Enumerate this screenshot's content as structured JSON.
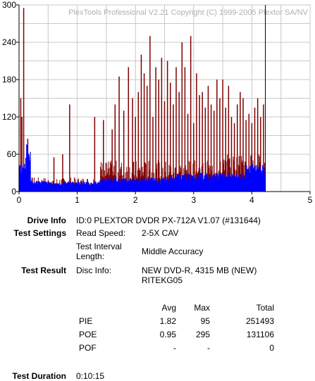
{
  "chart_data": {
    "type": "bar",
    "title": "PlexTools Professional V2.21 Copyright (C) 1999-2005 Plextor SA/NV",
    "xlim": [
      0,
      5
    ],
    "ylim": [
      0,
      300
    ],
    "x_ticks": [
      "0",
      "1",
      "2",
      "3",
      "4",
      "5"
    ],
    "y_ticks": [
      "0",
      "60",
      "120",
      "180",
      "240",
      "300"
    ],
    "grid": true,
    "disc_end_x": 4.22,
    "series": [
      {
        "name": "PIE",
        "color": "#0000ff"
      },
      {
        "name": "POE",
        "color": "#800000"
      }
    ],
    "poe_spikes": [
      [
        0.03,
        150
      ],
      [
        0.05,
        120
      ],
      [
        0.08,
        295
      ],
      [
        0.15,
        85
      ],
      [
        0.6,
        55
      ],
      [
        0.75,
        60
      ],
      [
        0.87,
        140
      ],
      [
        1.3,
        120
      ],
      [
        1.45,
        115
      ],
      [
        1.6,
        100
      ],
      [
        1.65,
        140
      ],
      [
        1.72,
        185
      ],
      [
        1.8,
        130
      ],
      [
        1.88,
        200
      ],
      [
        1.95,
        150
      ],
      [
        2.0,
        120
      ],
      [
        2.05,
        160
      ],
      [
        2.1,
        220
      ],
      [
        2.15,
        190
      ],
      [
        2.2,
        170
      ],
      [
        2.25,
        250
      ],
      [
        2.3,
        120
      ],
      [
        2.35,
        200
      ],
      [
        2.4,
        180
      ],
      [
        2.45,
        215
      ],
      [
        2.5,
        145
      ],
      [
        2.55,
        210
      ],
      [
        2.6,
        175
      ],
      [
        2.65,
        140
      ],
      [
        2.7,
        200
      ],
      [
        2.75,
        160
      ],
      [
        2.8,
        240
      ],
      [
        2.85,
        200
      ],
      [
        2.9,
        125
      ],
      [
        2.95,
        250
      ],
      [
        3.0,
        110
      ],
      [
        3.05,
        190
      ],
      [
        3.1,
        155
      ],
      [
        3.15,
        160
      ],
      [
        3.2,
        135
      ],
      [
        3.25,
        170
      ],
      [
        3.3,
        140
      ],
      [
        3.35,
        130
      ],
      [
        3.4,
        180
      ],
      [
        3.45,
        150
      ],
      [
        3.5,
        180
      ],
      [
        3.55,
        135
      ],
      [
        3.6,
        170
      ],
      [
        3.65,
        120
      ],
      [
        3.7,
        110
      ],
      [
        3.75,
        140
      ],
      [
        3.8,
        160
      ],
      [
        3.85,
        150
      ],
      [
        3.9,
        115
      ],
      [
        3.95,
        125
      ],
      [
        4.0,
        110
      ],
      [
        4.05,
        135
      ],
      [
        4.1,
        150
      ],
      [
        4.15,
        120
      ],
      [
        4.2,
        140
      ]
    ]
  },
  "drive_info": {
    "label": "Drive Info",
    "value": "ID:0 PLEXTOR DVDR PX-712A V1.07 (#131644)"
  },
  "test_settings": {
    "label": "Test Settings",
    "read_speed_label": "Read Speed:",
    "read_speed_value": "2-5X CAV",
    "interval_label_1": "Test Interval",
    "interval_label_2": "Length:",
    "interval_value": "Middle Accuracy"
  },
  "test_result": {
    "label": "Test Result",
    "disc_info_label": "Disc Info:",
    "disc_info_line1": "NEW DVD-R, 4315 MB (NEW)",
    "disc_info_line2": "RITEKG05"
  },
  "results_table": {
    "headers": {
      "avg": "Avg",
      "max": "Max",
      "total": "Total"
    },
    "rows": [
      {
        "name": "PIE",
        "avg": "1.82",
        "max": "95",
        "total": "251493"
      },
      {
        "name": "POE",
        "avg": "0.95",
        "max": "295",
        "total": "131106"
      },
      {
        "name": "POF",
        "avg": "-",
        "max": "-",
        "total": "0"
      }
    ]
  },
  "test_duration": {
    "label": "Test Duration",
    "value": "0:10:15"
  }
}
